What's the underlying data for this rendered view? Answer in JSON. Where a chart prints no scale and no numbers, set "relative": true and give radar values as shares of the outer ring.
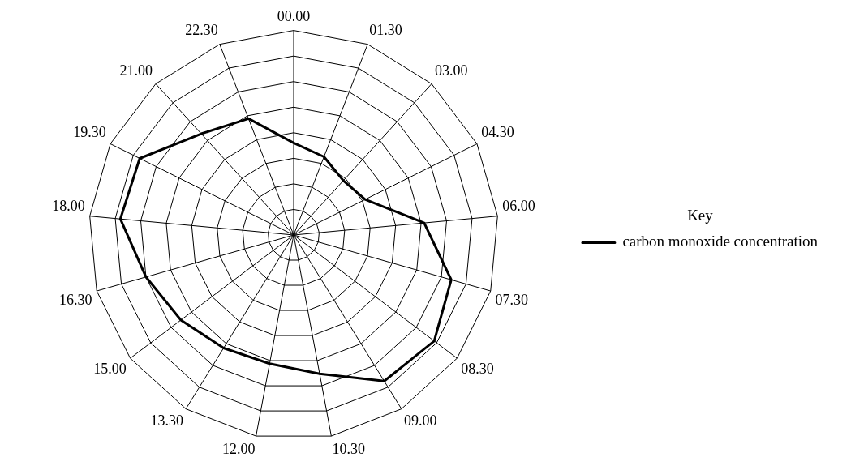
{
  "chart_data": {
    "type": "radar",
    "relative": true,
    "legend_title": "Key",
    "legend": "right",
    "grid": true,
    "marker": "none",
    "categories": [
      "00.00",
      "01.30",
      "03.00",
      "04.30",
      "06.00",
      "07.30",
      "08.30",
      "09.00",
      "10.30",
      "12.00",
      "13.30",
      "15.00",
      "16.30",
      "18.00",
      "19.30",
      "21.00",
      "22.30"
    ],
    "series": [
      {
        "name": "carbon monoxide concentration",
        "color": "#000000",
        "values": [
          0.45,
          0.41,
          0.36,
          0.39,
          0.64,
          0.8,
          0.86,
          0.84,
          0.69,
          0.64,
          0.65,
          0.69,
          0.75,
          0.85,
          0.84,
          0.67,
          0.61
        ]
      }
    ]
  }
}
